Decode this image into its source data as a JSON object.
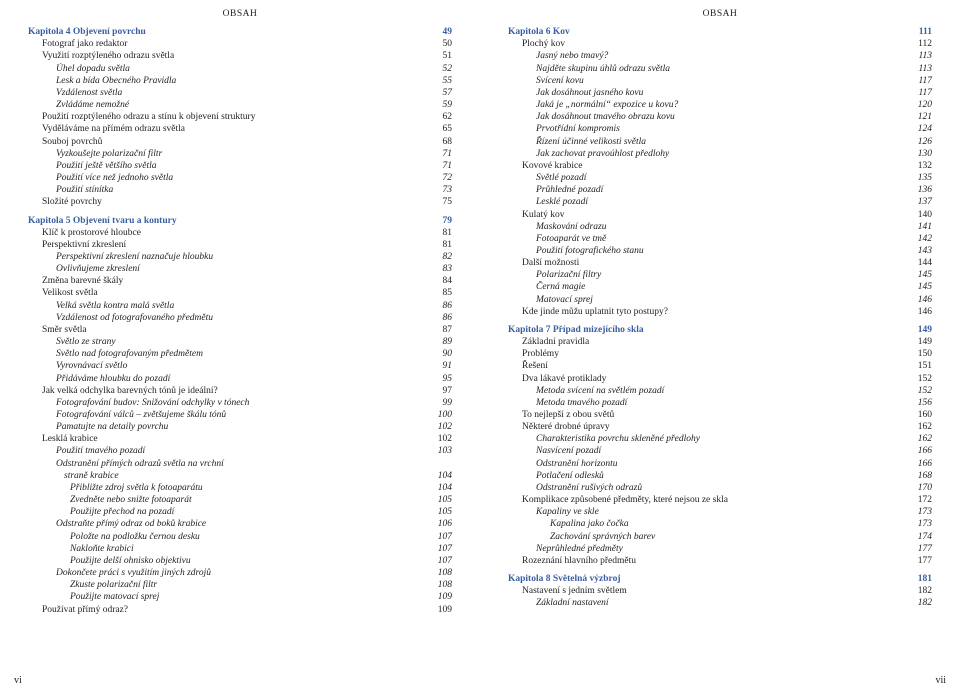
{
  "header_left": "OBSAH",
  "header_right": "OBSAH",
  "page_num_left": "vi",
  "page_num_right": "vii",
  "colors": {
    "chapter": "#3a5fa0",
    "text": "#222222",
    "background": "#ffffff"
  },
  "left": [
    {
      "t": "chapter",
      "label": "Kapitola 4    Objevení povrchu",
      "pg": "49"
    },
    {
      "t": "l1",
      "label": "Fotograf jako redaktor",
      "pg": "50"
    },
    {
      "t": "l1",
      "label": "Využití rozptýleného odrazu světla",
      "pg": "51"
    },
    {
      "t": "l2i",
      "label": "Úhel dopadu světla",
      "pg": "52"
    },
    {
      "t": "l2i",
      "label": "Lesk a bída Obecného Pravidla",
      "pg": "55"
    },
    {
      "t": "l2i",
      "label": "Vzdálenost světla",
      "pg": "57"
    },
    {
      "t": "l2i",
      "label": "Zvládáme nemožné",
      "pg": "59"
    },
    {
      "t": "l1",
      "label": "Použití rozptýleného odrazu a stínu k objevení struktury",
      "pg": "62"
    },
    {
      "t": "l1",
      "label": "Vyděláváme na přímém odrazu světla",
      "pg": "65"
    },
    {
      "t": "l1",
      "label": "Souboj povrchů",
      "pg": "68"
    },
    {
      "t": "l2i",
      "label": "Vyzkoušejte polarizační filtr",
      "pg": "71"
    },
    {
      "t": "l2i",
      "label": "Použití ještě většího světla",
      "pg": "71"
    },
    {
      "t": "l2i",
      "label": "Použití více než jednoho světla",
      "pg": "72"
    },
    {
      "t": "l2i",
      "label": "Použití stínítka",
      "pg": "73"
    },
    {
      "t": "l1",
      "label": "Složité povrchy",
      "pg": "75"
    },
    {
      "t": "gap"
    },
    {
      "t": "chapter",
      "label": "Kapitola 5    Objevení tvaru a kontury",
      "pg": "79"
    },
    {
      "t": "l1",
      "label": "Klíč k prostorové hloubce",
      "pg": "81"
    },
    {
      "t": "l1",
      "label": "Perspektivní zkreslení",
      "pg": "81"
    },
    {
      "t": "l2i",
      "label": "Perspektivní zkreslení naznačuje hloubku",
      "pg": "82"
    },
    {
      "t": "l2i",
      "label": "Ovlivňujeme zkreslení",
      "pg": "83"
    },
    {
      "t": "l1",
      "label": "Změna barevné škály",
      "pg": "84"
    },
    {
      "t": "l1",
      "label": "Velikost světla",
      "pg": "85"
    },
    {
      "t": "l2i",
      "label": "Velká světla kontra malá světla",
      "pg": "86"
    },
    {
      "t": "l2i",
      "label": "Vzdálenost od fotografovaného předmětu",
      "pg": "86"
    },
    {
      "t": "l1",
      "label": "Směr světla",
      "pg": "87"
    },
    {
      "t": "l2i",
      "label": "Světlo ze strany",
      "pg": "89"
    },
    {
      "t": "l2i",
      "label": "Světlo nad fotografovaným předmětem",
      "pg": "90"
    },
    {
      "t": "l2i",
      "label": "Vyrovnávací světlo",
      "pg": "91"
    },
    {
      "t": "l2i",
      "label": "Přidáváme hloubku do pozadí",
      "pg": "95"
    },
    {
      "t": "l1",
      "label": "Jak velká odchylka barevných tónů je ideální?",
      "pg": "97"
    },
    {
      "t": "l2i",
      "label": "Fotografování budov: Snižování odchylky v tónech",
      "pg": "99"
    },
    {
      "t": "l2i",
      "label": "Fotografování válců – zvětšujeme škálu tónů",
      "pg": "100"
    },
    {
      "t": "l2i",
      "label": "Pamatujte na detaily povrchu",
      "pg": "102"
    },
    {
      "t": "l1",
      "label": "Lesklá krabice",
      "pg": "102"
    },
    {
      "t": "l2i",
      "label": "Použití tmavého pozadí",
      "pg": "103"
    },
    {
      "t": "l2i",
      "label": "Odstranění přímých odrazů světla na vrchní",
      "pg": ""
    },
    {
      "t": "l2icont",
      "label": "straně krabice",
      "pg": "104"
    },
    {
      "t": "l3i",
      "label": "Přibližte zdroj světla k fotoaparátu",
      "pg": "104"
    },
    {
      "t": "l3i",
      "label": "Zvedněte nebo snižte fotoaparát",
      "pg": "105"
    },
    {
      "t": "l3i",
      "label": "Použijte přechod na pozadí",
      "pg": "105"
    },
    {
      "t": "l2i",
      "label": "Odstraňte přímý odraz od boků krabice",
      "pg": "106"
    },
    {
      "t": "l3i",
      "label": "Položte na podložku černou desku",
      "pg": "107"
    },
    {
      "t": "l3i",
      "label": "Nakloňte krabici",
      "pg": "107"
    },
    {
      "t": "l3i",
      "label": "Použijte delší ohnisko objektivu",
      "pg": "107"
    },
    {
      "t": "l2i",
      "label": "Dokončete práci s využitím jiných zdrojů",
      "pg": "108"
    },
    {
      "t": "l3i",
      "label": "Zkuste polarizační filtr",
      "pg": "108"
    },
    {
      "t": "l3i",
      "label": "Použijte matovací sprej",
      "pg": "109"
    },
    {
      "t": "l1",
      "label": "Používat přímý odraz?",
      "pg": "109"
    }
  ],
  "right": [
    {
      "t": "chapter",
      "label": "Kapitola 6    Kov",
      "pg": "111"
    },
    {
      "t": "l1",
      "label": "Plochý kov",
      "pg": "112"
    },
    {
      "t": "l2i",
      "label": "Jasný nebo tmavý?",
      "pg": "113"
    },
    {
      "t": "l2i",
      "label": "Najděte skupinu úhlů odrazu světla",
      "pg": "113"
    },
    {
      "t": "l2i",
      "label": "Svícení kovu",
      "pg": "117"
    },
    {
      "t": "l2i",
      "label": "Jak dosáhnout jasného kovu",
      "pg": "117"
    },
    {
      "t": "l2i",
      "label": "Jaká je „normální“ expozice u kovu?",
      "pg": "120"
    },
    {
      "t": "l2i",
      "label": "Jak dosáhnout tmavého obrazu kovu",
      "pg": "121"
    },
    {
      "t": "l2i",
      "label": "Prvotřídní kompromis",
      "pg": "124"
    },
    {
      "t": "l2i",
      "label": "Řízení účinné velikosti světla",
      "pg": "126"
    },
    {
      "t": "l2i",
      "label": "Jak zachovat pravoúhlost předlohy",
      "pg": "130"
    },
    {
      "t": "l1",
      "label": "Kovové krabice",
      "pg": "132"
    },
    {
      "t": "l2i",
      "label": "Světlé pozadí",
      "pg": "135"
    },
    {
      "t": "l2i",
      "label": "Průhledné pozadí",
      "pg": "136"
    },
    {
      "t": "l2i",
      "label": "Lesklé pozadí",
      "pg": "137"
    },
    {
      "t": "l1",
      "label": "Kulatý kov",
      "pg": "140"
    },
    {
      "t": "l2i",
      "label": "Maskování odrazu",
      "pg": "141"
    },
    {
      "t": "l2i",
      "label": "Fotoaparát ve tmě",
      "pg": "142"
    },
    {
      "t": "l2i",
      "label": "Použití fotografického stanu",
      "pg": "143"
    },
    {
      "t": "l1",
      "label": "Další možnosti",
      "pg": "144"
    },
    {
      "t": "l2i",
      "label": "Polarizační filtry",
      "pg": "145"
    },
    {
      "t": "l2i",
      "label": "Černá magie",
      "pg": "145"
    },
    {
      "t": "l2i",
      "label": "Matovací sprej",
      "pg": "146"
    },
    {
      "t": "l1",
      "label": "Kde jinde můžu uplatnit tyto postupy?",
      "pg": "146"
    },
    {
      "t": "gap"
    },
    {
      "t": "chapter",
      "label": "Kapitola 7    Případ mizejícího skla",
      "pg": "149"
    },
    {
      "t": "l1",
      "label": "Základní pravidla",
      "pg": "149"
    },
    {
      "t": "l1",
      "label": "Problémy",
      "pg": "150"
    },
    {
      "t": "l1",
      "label": "Řešení",
      "pg": "151"
    },
    {
      "t": "l1",
      "label": "Dva lákavé protiklady",
      "pg": "152"
    },
    {
      "t": "l2i",
      "label": "Metoda svícení na světlém pozadí",
      "pg": "152"
    },
    {
      "t": "l2i",
      "label": "Metoda tmavého pozadí",
      "pg": "156"
    },
    {
      "t": "l1",
      "label": "To nejlepší z obou světů",
      "pg": "160"
    },
    {
      "t": "l1",
      "label": "Některé drobné úpravy",
      "pg": "162"
    },
    {
      "t": "l2i",
      "label": "Charakteristika povrchu skleněné předlohy",
      "pg": "162"
    },
    {
      "t": "l2i",
      "label": "Nasvícení pozadí",
      "pg": "166"
    },
    {
      "t": "l2i",
      "label": "Odstranění horizontu",
      "pg": "166"
    },
    {
      "t": "l2i",
      "label": "Potlačení odlesků",
      "pg": "168"
    },
    {
      "t": "l2i",
      "label": "Odstranění rušivých odrazů",
      "pg": "170"
    },
    {
      "t": "l1",
      "label": "Komplikace způsobené předměty, které nejsou ze skla",
      "pg": "172"
    },
    {
      "t": "l2i",
      "label": "Kapaliny ve skle",
      "pg": "173"
    },
    {
      "t": "l3i",
      "label": "Kapalina jako čočka",
      "pg": "173"
    },
    {
      "t": "l3i",
      "label": "Zachování správných barev",
      "pg": "174"
    },
    {
      "t": "l2i",
      "label": "Neprůhledné předměty",
      "pg": "177"
    },
    {
      "t": "l1",
      "label": "Rozeznání hlavního předmětu",
      "pg": "177"
    },
    {
      "t": "gap"
    },
    {
      "t": "chapter",
      "label": "Kapitola 8    Světelná výzbroj",
      "pg": "181"
    },
    {
      "t": "l1",
      "label": "Nastavení s jedním světlem",
      "pg": "182"
    },
    {
      "t": "l2i",
      "label": "Základní nastavení",
      "pg": "182"
    }
  ]
}
